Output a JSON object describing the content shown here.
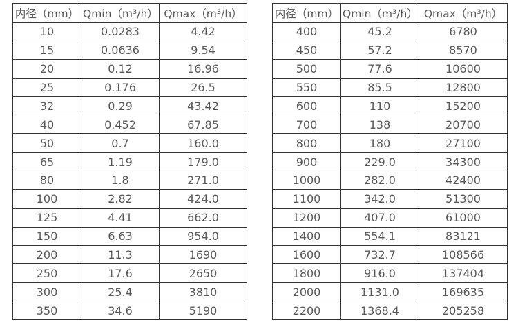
{
  "page": {
    "background": "#ffffff",
    "border_color": "#333333",
    "text_color": "#595959"
  },
  "tables": [
    {
      "name": "flow-range-table-small-diameters",
      "headers": [
        "内径（mm）",
        "Qmin（m³/h）",
        "Qmax（m³/h）"
      ],
      "rows": [
        [
          "10",
          "0.0283",
          "4.42"
        ],
        [
          "15",
          "0.0636",
          "9.54"
        ],
        [
          "20",
          "0.12",
          "16.96"
        ],
        [
          "25",
          "0.176",
          "26.5"
        ],
        [
          "32",
          "0.29",
          "43.42"
        ],
        [
          "40",
          "0.452",
          "67.85"
        ],
        [
          "50",
          "0.7",
          "160.0"
        ],
        [
          "65",
          "1.19",
          "179.0"
        ],
        [
          "80",
          "1.8",
          "271.0"
        ],
        [
          "100",
          "2.82",
          "424.0"
        ],
        [
          "125",
          "4.41",
          "662.0"
        ],
        [
          "150",
          "6.63",
          "954.0"
        ],
        [
          "200",
          "11.3",
          "1690"
        ],
        [
          "250",
          "17.6",
          "2650"
        ],
        [
          "300",
          "25.4",
          "3810"
        ],
        [
          "350",
          "34.6",
          "5190"
        ]
      ]
    },
    {
      "name": "flow-range-table-large-diameters",
      "headers": [
        "内径（mm）",
        "Qmin（m³/h）",
        "Qmax（m³/h）"
      ],
      "rows": [
        [
          "400",
          "45.2",
          "6780"
        ],
        [
          "450",
          "57.2",
          "8570"
        ],
        [
          "500",
          "77.6",
          "10600"
        ],
        [
          "550",
          "85.5",
          "12800"
        ],
        [
          "600",
          "110",
          "15200"
        ],
        [
          "700",
          "138",
          "20700"
        ],
        [
          "800",
          "180",
          "27100"
        ],
        [
          "900",
          "229.0",
          "34300"
        ],
        [
          "1000",
          "282.0",
          "42400"
        ],
        [
          "1100",
          "342.0",
          "51300"
        ],
        [
          "1200",
          "407.0",
          "61000"
        ],
        [
          "1400",
          "554.1",
          "83121"
        ],
        [
          "1600",
          "732.7",
          "108566"
        ],
        [
          "1800",
          "916.0",
          "137404"
        ],
        [
          "2000",
          "1131.0",
          "169635"
        ],
        [
          "2200",
          "1368.4",
          "205258"
        ]
      ]
    }
  ]
}
